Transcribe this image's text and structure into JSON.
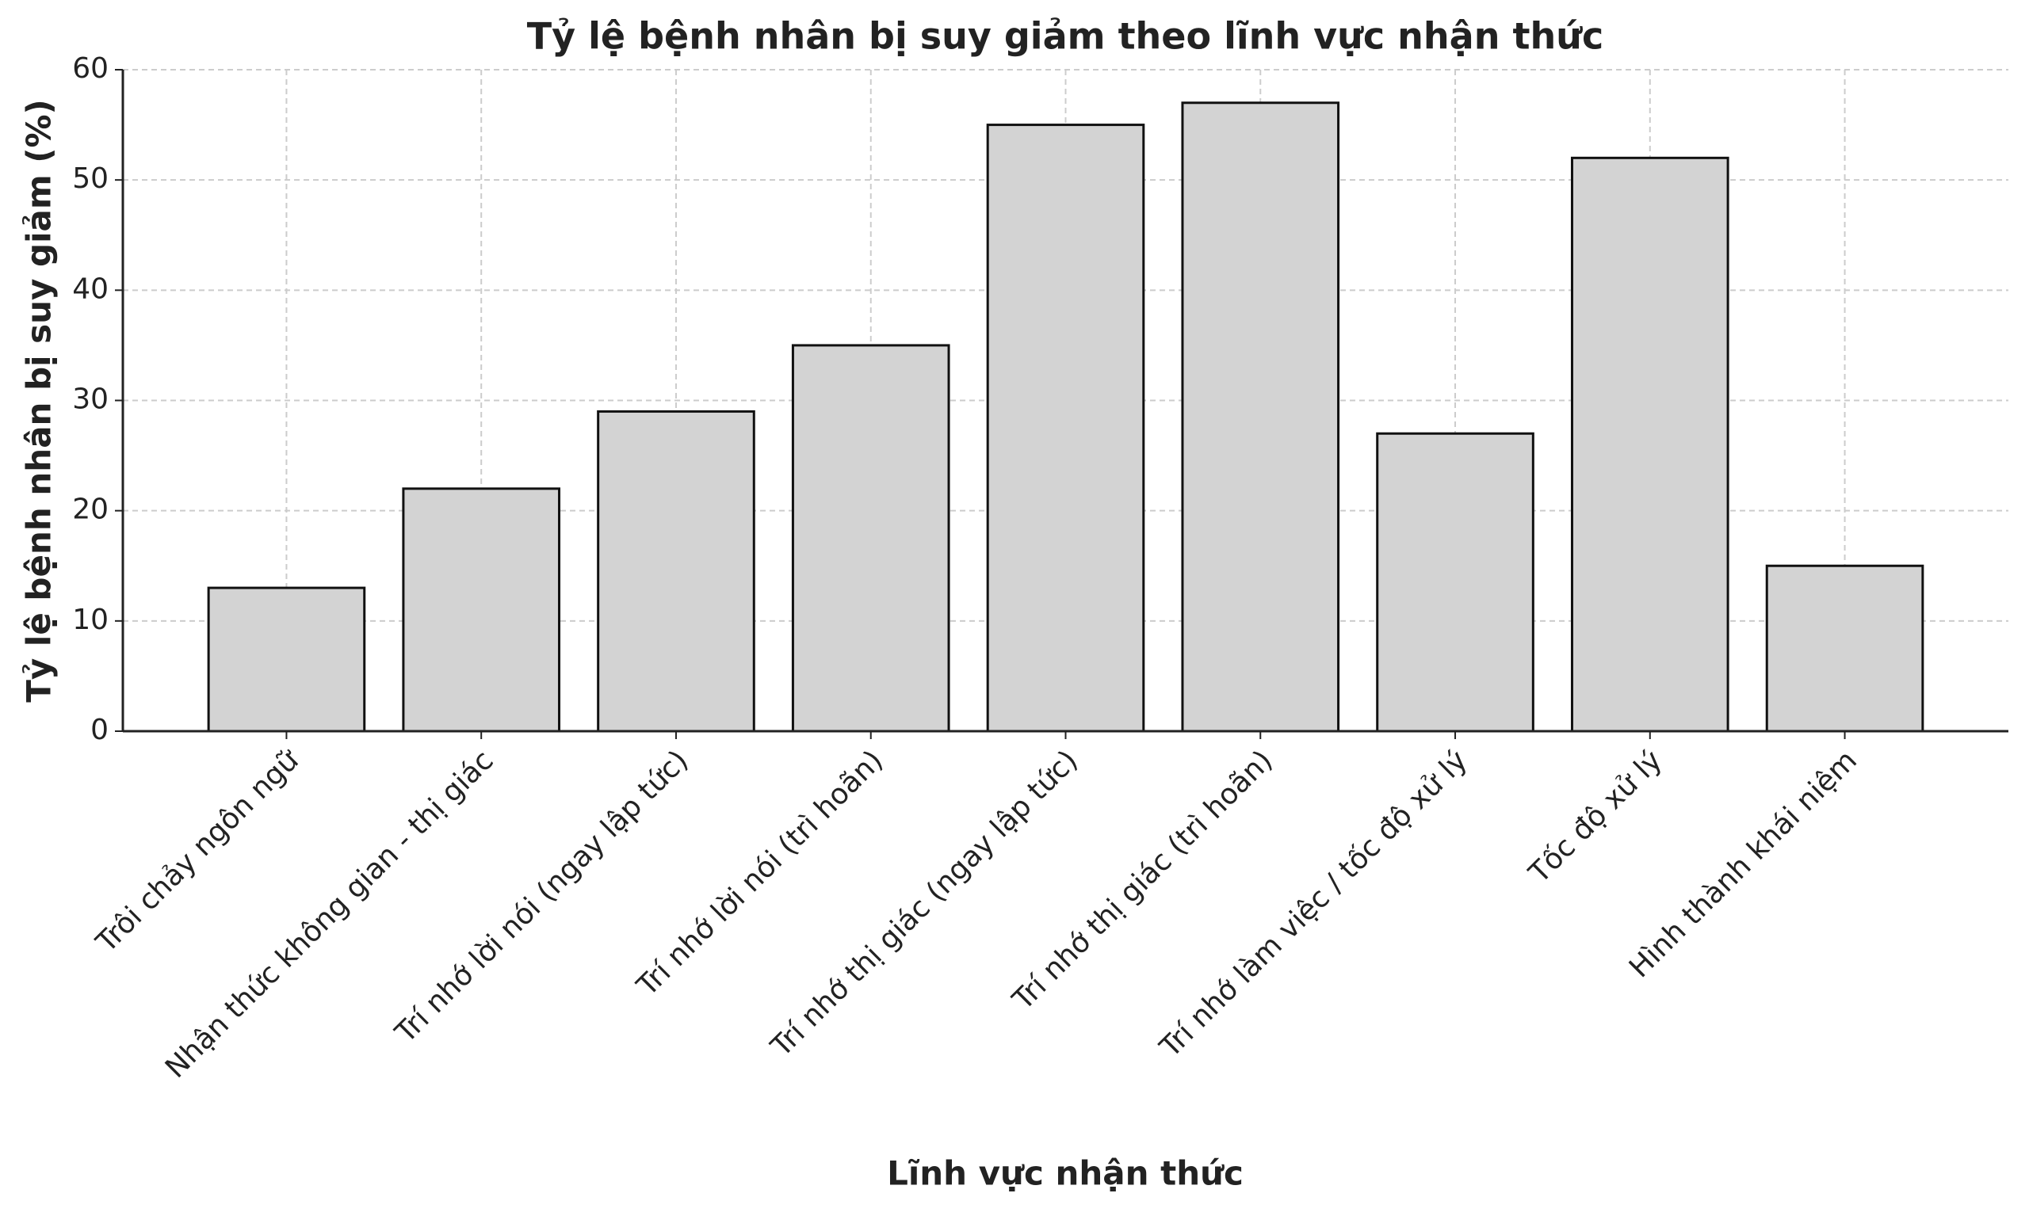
{
  "chart_data": {
    "type": "bar",
    "title": "Tỷ lệ bệnh nhân bị suy giảm theo lĩnh vực nhận thức",
    "x_label": "Lĩnh vực nhận thức",
    "y_label": "Tỷ lệ bệnh nhân bị suy giảm (%)",
    "categories": [
      "Trôi chảy ngôn ngữ",
      "Nhận thức không gian - thị giác",
      "Trí nhớ lời nói (ngay lập tức)",
      "Trí nhớ lời nói (trì hoãn)",
      "Trí nhớ thị giác (ngay lập tức)",
      "Trí nhớ thị giác (trì hoãn)",
      "Trí nhớ làm việc / tốc độ xử lý",
      "Tốc độ xử lý",
      "Hình thành khái niệm"
    ],
    "values": [
      13,
      22,
      29,
      35,
      55,
      57,
      27,
      52,
      15
    ],
    "color": "#d3d3d3",
    "ylim": [
      0,
      60
    ],
    "yticks": [
      0,
      10,
      20,
      30,
      40,
      50,
      60
    ],
    "grid": true
  }
}
